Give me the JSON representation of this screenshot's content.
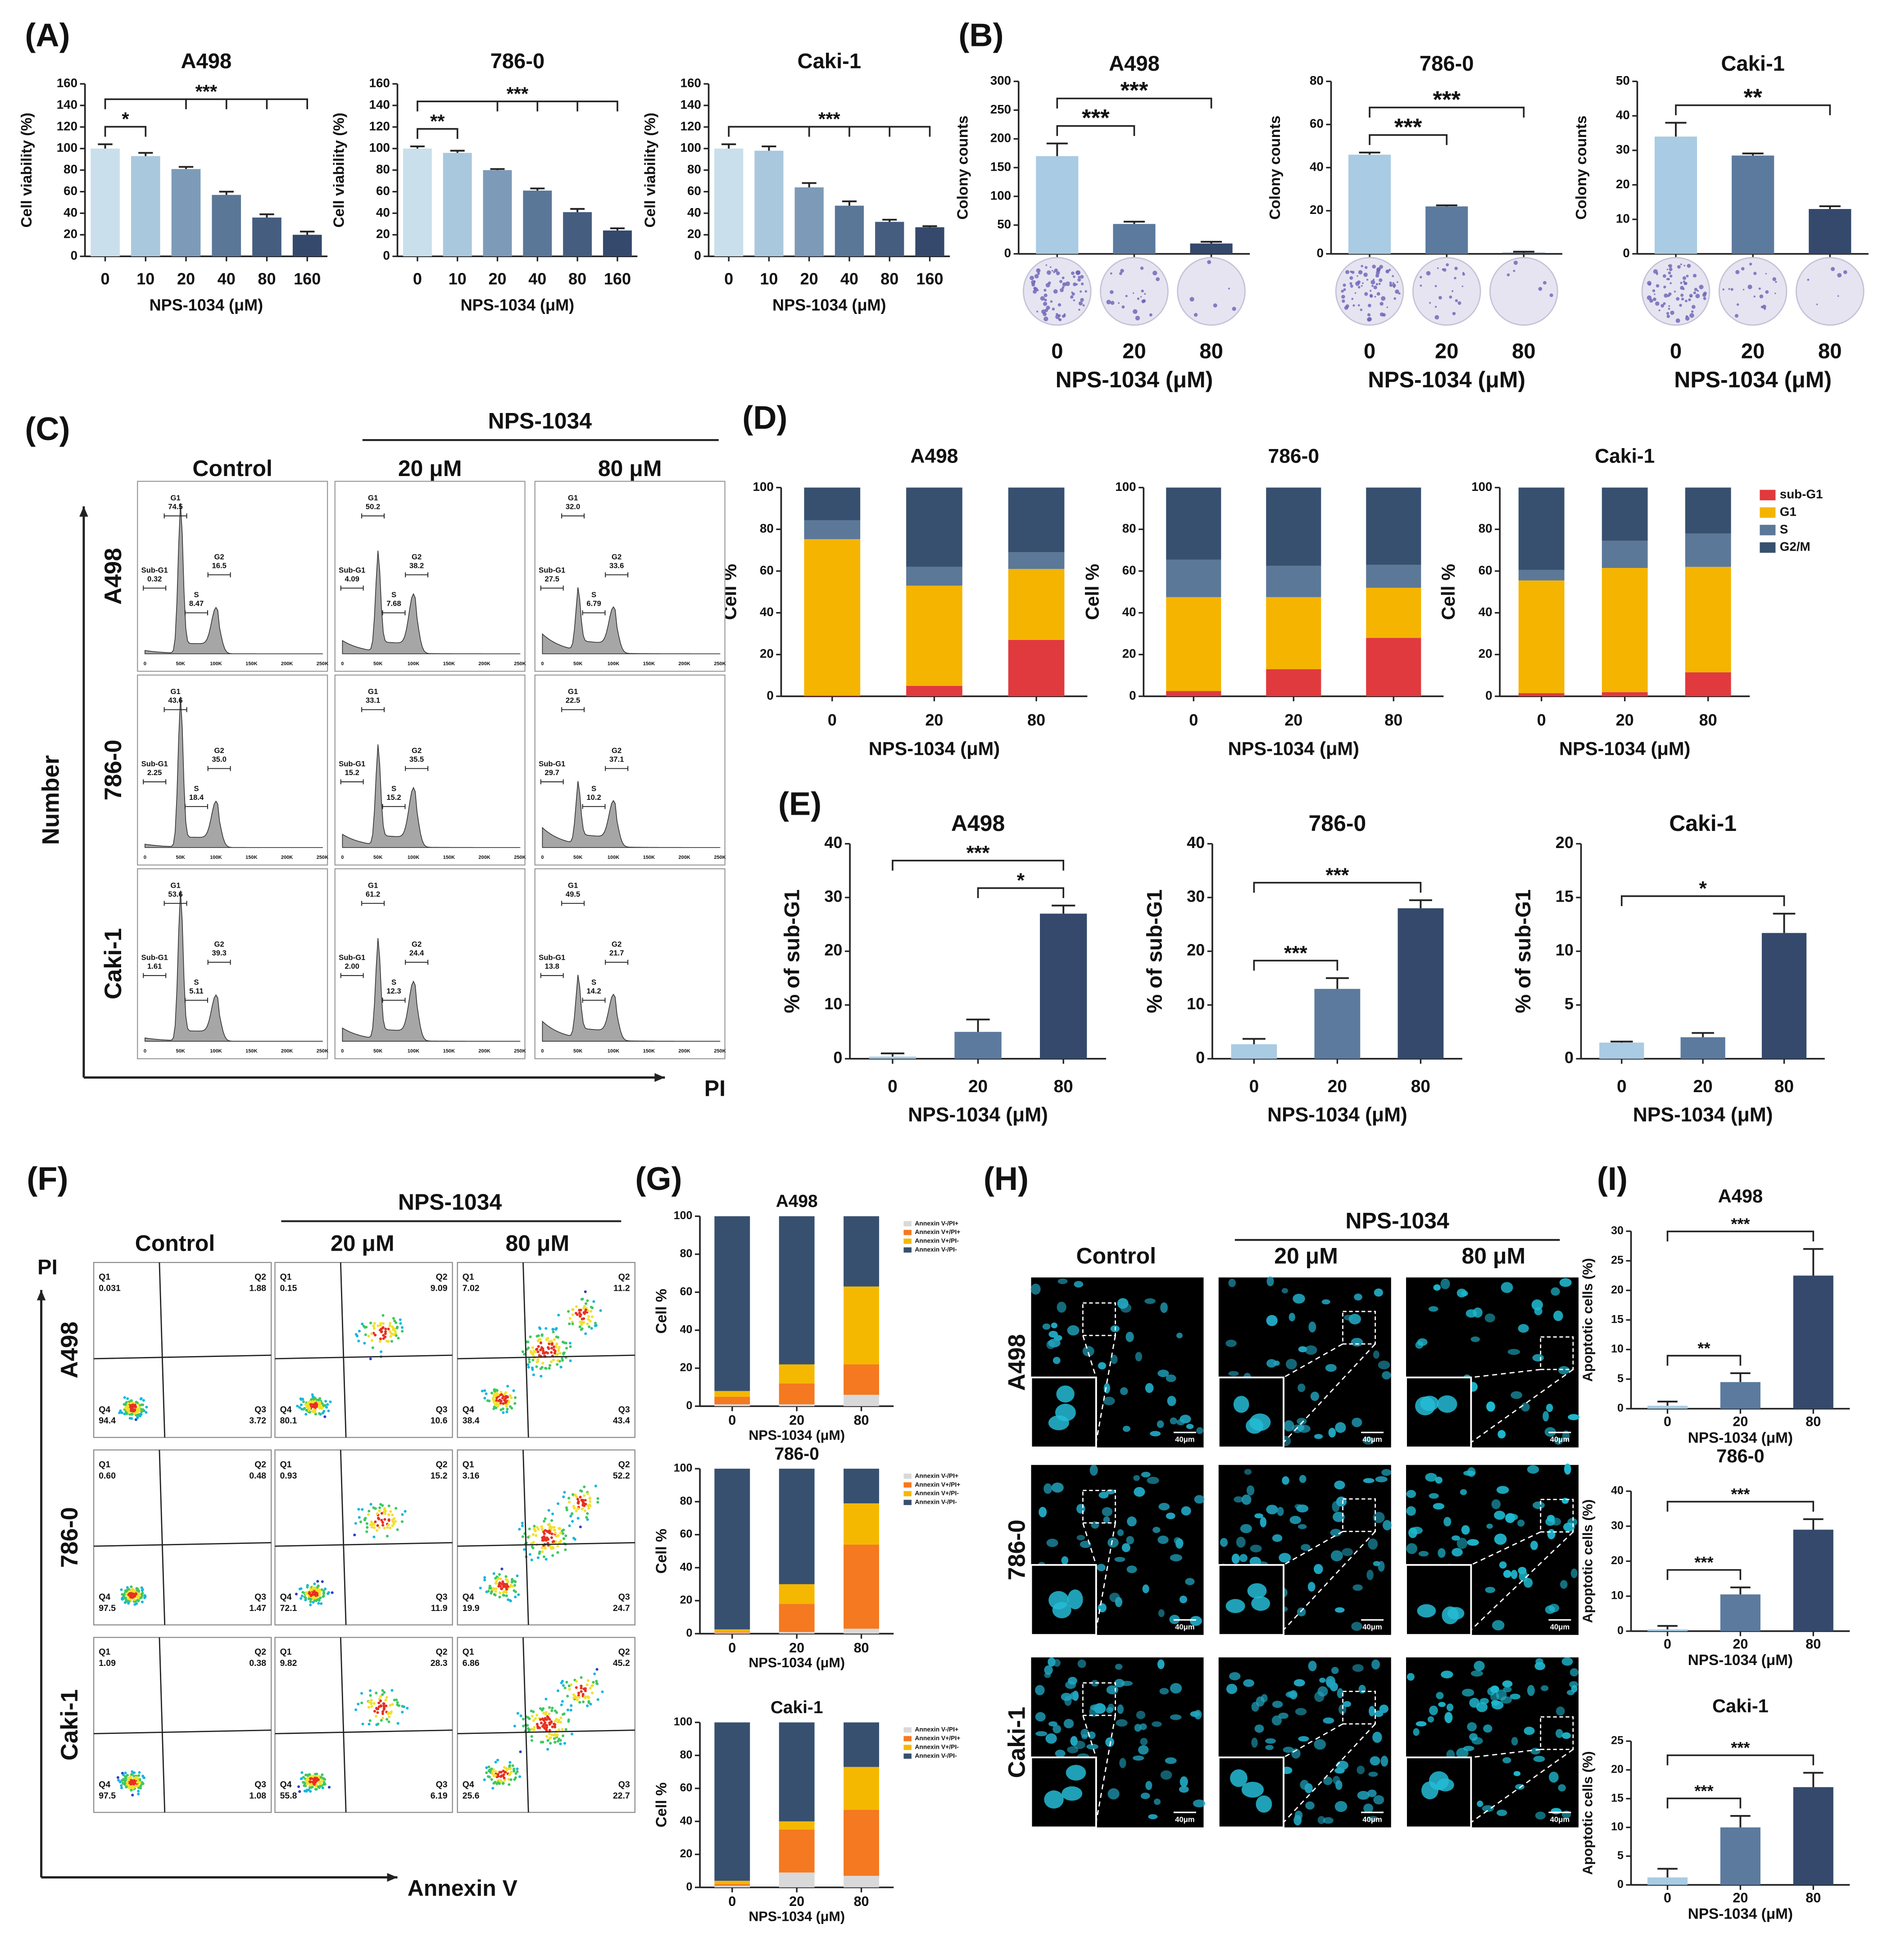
{
  "panel_labels": [
    "(A)",
    "(B)",
    "(C)",
    "(D)",
    "(E)",
    "(F)",
    "(G)",
    "(H)",
    "(I)"
  ],
  "chart_data": [
    {
      "type": "bar",
      "title": "A498",
      "xlabel": "NPS-1034 (μM)",
      "ylabel": "Cell viability (%)",
      "categories": [
        "0",
        "10",
        "20",
        "40",
        "80",
        "160"
      ],
      "values": [
        100,
        93,
        81,
        57,
        36,
        20
      ],
      "errors": [
        4,
        3,
        2,
        3,
        3,
        3
      ],
      "colors": [
        "#c9dfeb",
        "#a9c8de",
        "#7d9bb9",
        "#5b7797",
        "#455e80",
        "#34496b"
      ],
      "ylim": [
        0,
        160
      ],
      "yticks": [
        0,
        20,
        40,
        60,
        80,
        100,
        120,
        140,
        160
      ],
      "annotations": [
        {
          "text": "*",
          "from": "0",
          "to": [
            "10"
          ]
        },
        {
          "text": "***",
          "from": "0",
          "to": [
            "20",
            "40",
            "80",
            "160"
          ]
        }
      ]
    },
    {
      "type": "bar",
      "title": "786-0",
      "xlabel": "NPS-1034 (μM)",
      "ylabel": "Cell viability (%)",
      "categories": [
        "0",
        "10",
        "20",
        "40",
        "80",
        "160"
      ],
      "values": [
        100,
        96,
        80,
        61,
        41,
        24
      ],
      "errors": [
        2,
        2,
        1,
        2,
        3,
        2
      ],
      "colors": [
        "#c9dfeb",
        "#a9c8de",
        "#7d9bb9",
        "#5b7797",
        "#455e80",
        "#34496b"
      ],
      "ylim": [
        0,
        160
      ],
      "yticks": [
        0,
        20,
        40,
        60,
        80,
        100,
        120,
        140,
        160
      ],
      "annotations": [
        {
          "text": "**",
          "from": "0",
          "to": [
            "10"
          ]
        },
        {
          "text": "***",
          "from": "0",
          "to": [
            "20",
            "40",
            "80",
            "160"
          ]
        }
      ]
    },
    {
      "type": "bar",
      "title": "Caki-1",
      "xlabel": "NPS-1034 (μM)",
      "ylabel": "Cell viability (%)",
      "categories": [
        "0",
        "10",
        "20",
        "40",
        "80",
        "160"
      ],
      "values": [
        100,
        98,
        64,
        47,
        32,
        27
      ],
      "errors": [
        4,
        4,
        4,
        4,
        2,
        1
      ],
      "colors": [
        "#c9dfeb",
        "#a9c8de",
        "#7d9bb9",
        "#5b7797",
        "#455e80",
        "#34496b"
      ],
      "ylim": [
        0,
        160
      ],
      "yticks": [
        0,
        20,
        40,
        60,
        80,
        100,
        120,
        140,
        160
      ],
      "annotations": [
        {
          "text": "***",
          "from": "0",
          "to": [
            "20",
            "40",
            "80",
            "160"
          ]
        }
      ]
    },
    {
      "type": "bar",
      "title": "A498",
      "xlabel": "NPS-1034 (μM)",
      "ylabel": "Colony counts",
      "categories": [
        "0",
        "20",
        "80"
      ],
      "values": [
        170,
        52,
        18
      ],
      "errors": [
        22,
        4,
        3
      ],
      "colors": [
        "#a9cbe3",
        "#5b7a9e",
        "#34496b"
      ],
      "ylim": [
        0,
        300
      ],
      "yticks": [
        0,
        50,
        100,
        150,
        200,
        250,
        300
      ],
      "annotations": [
        {
          "text": "***",
          "from": "0",
          "to": [
            "20"
          ]
        },
        {
          "text": "***",
          "from": "0",
          "to": [
            "80"
          ]
        }
      ]
    },
    {
      "type": "bar",
      "title": "786-0",
      "xlabel": "NPS-1034 (μM)",
      "ylabel": "Colony counts",
      "categories": [
        "0",
        "20",
        "80"
      ],
      "values": [
        46,
        22,
        0.5
      ],
      "errors": [
        1,
        0.5,
        0.5
      ],
      "colors": [
        "#a9cbe3",
        "#5b7a9e",
        "#34496b"
      ],
      "ylim": [
        0,
        80
      ],
      "yticks": [
        0,
        20,
        40,
        60,
        80
      ],
      "annotations": [
        {
          "text": "***",
          "from": "0",
          "to": [
            "20"
          ]
        },
        {
          "text": "***",
          "from": "0",
          "to": [
            "80"
          ]
        }
      ]
    },
    {
      "type": "bar",
      "title": "Caki-1",
      "xlabel": "NPS-1034 (μM)",
      "ylabel": "Colony counts",
      "categories": [
        "0",
        "20",
        "80"
      ],
      "values": [
        34,
        28.5,
        13
      ],
      "errors": [
        4,
        0.6,
        0.8
      ],
      "colors": [
        "#a9cbe3",
        "#5b7a9e",
        "#34496b"
      ],
      "ylim": [
        0,
        50
      ],
      "yticks": [
        0,
        10,
        20,
        30,
        40,
        50
      ],
      "annotations": [
        {
          "text": "**",
          "from": "0",
          "to": [
            "80"
          ]
        }
      ]
    },
    {
      "type": "bar",
      "stacked": true,
      "title": "A498",
      "xlabel": "NPS-1034 (μM)",
      "ylabel": "Cell %",
      "categories": [
        "0",
        "20",
        "80"
      ],
      "series": [
        {
          "color": "#e03a3e",
          "values": [
            0.3,
            5,
            27
          ]
        },
        {
          "color": "#f5b400",
          "values": [
            75,
            48,
            34
          ]
        },
        {
          "color": "#5b7898",
          "values": [
            9,
            9,
            8
          ]
        },
        {
          "color": "#37506f",
          "values": [
            15.7,
            38,
            31
          ]
        }
      ],
      "ylim": [
        0,
        100
      ],
      "yticks": [
        0,
        20,
        40,
        60,
        80,
        100
      ]
    },
    {
      "type": "bar",
      "stacked": true,
      "title": "786-0",
      "xlabel": "NPS-1034 (μM)",
      "ylabel": "Cell %",
      "categories": [
        "0",
        "20",
        "80"
      ],
      "series": [
        {
          "color": "#e03a3e",
          "values": [
            2.5,
            13,
            28
          ]
        },
        {
          "color": "#f5b400",
          "values": [
            45,
            34.5,
            24
          ]
        },
        {
          "color": "#5b7898",
          "values": [
            18,
            15,
            11
          ]
        },
        {
          "color": "#37506f",
          "values": [
            34.5,
            37.5,
            37
          ]
        }
      ],
      "ylim": [
        0,
        100
      ],
      "yticks": [
        0,
        20,
        40,
        60,
        80,
        100
      ]
    },
    {
      "type": "bar",
      "stacked": true,
      "title": "Caki-1",
      "xlabel": "NPS-1034 (μM)",
      "ylabel": "Cell %",
      "categories": [
        "0",
        "20",
        "80"
      ],
      "series": [
        {
          "name": "sub-G1",
          "color": "#e03a3e",
          "values": [
            1.5,
            2,
            11.5
          ]
        },
        {
          "name": "G1",
          "color": "#f5b400",
          "values": [
            54,
            59.5,
            50.5
          ]
        },
        {
          "name": "S",
          "color": "#5b7898",
          "values": [
            5,
            13,
            16
          ]
        },
        {
          "name": "G2/M",
          "color": "#37506f",
          "values": [
            39.5,
            25.5,
            22
          ]
        }
      ],
      "ylim": [
        0,
        100
      ],
      "yticks": [
        0,
        20,
        40,
        60,
        80,
        100
      ],
      "legend": "right"
    },
    {
      "type": "bar",
      "title": "A498",
      "xlabel": "NPS-1034 (μM)",
      "ylabel": "% of sub-G1",
      "categories": [
        "0",
        "20",
        "80"
      ],
      "values": [
        0.4,
        5,
        27
      ],
      "errors": [
        0.6,
        2.3,
        1.5
      ],
      "colors": [
        "#a9cbe3",
        "#5b7a9e",
        "#34496b"
      ],
      "ylim": [
        0,
        40
      ],
      "yticks": [
        0,
        10,
        20,
        30,
        40
      ],
      "annotations": [
        {
          "text": "*",
          "from": "20",
          "to": [
            "80"
          ]
        },
        {
          "text": "***",
          "from": "0",
          "to": [
            "80"
          ]
        }
      ]
    },
    {
      "type": "bar",
      "title": "786-0",
      "xlabel": "NPS-1034 (μM)",
      "ylabel": "% of sub-G1",
      "categories": [
        "0",
        "20",
        "80"
      ],
      "values": [
        2.7,
        13,
        28
      ],
      "errors": [
        1,
        2,
        1.5
      ],
      "colors": [
        "#a9cbe3",
        "#5b7a9e",
        "#34496b"
      ],
      "ylim": [
        0,
        40
      ],
      "yticks": [
        0,
        10,
        20,
        30,
        40
      ],
      "annotations": [
        {
          "text": "***",
          "from": "0",
          "to": [
            "20"
          ]
        },
        {
          "text": "***",
          "from": "0",
          "to": [
            "80"
          ]
        }
      ]
    },
    {
      "type": "bar",
      "title": "Caki-1",
      "xlabel": "NPS-1034 (μM)",
      "ylabel": "% of sub-G1",
      "categories": [
        "0",
        "20",
        "80"
      ],
      "values": [
        1.5,
        2,
        11.7
      ],
      "errors": [
        0.1,
        0.4,
        1.8
      ],
      "colors": [
        "#a9cbe3",
        "#5b7a9e",
        "#34496b"
      ],
      "ylim": [
        0,
        20
      ],
      "yticks": [
        0,
        5,
        10,
        15,
        20
      ],
      "annotations": [
        {
          "text": "*",
          "from": "0",
          "to": [
            "80"
          ]
        }
      ]
    },
    {
      "type": "bar",
      "stacked": true,
      "title": "A498",
      "xlabel": "NPS-1034 (μM)",
      "ylabel": "Cell %",
      "categories": [
        "0",
        "20",
        "80"
      ],
      "series": [
        {
          "name": "Annexin V-/PI+",
          "color": "#d9d9d9",
          "values": [
            1,
            1,
            6
          ]
        },
        {
          "name": "Annexin V+/PI+",
          "color": "#f47920",
          "values": [
            4,
            11,
            16
          ]
        },
        {
          "name": "Annexin V+/PI-",
          "color": "#f5b800",
          "values": [
            3,
            10,
            41
          ]
        },
        {
          "name": "Annexin V-/PI-",
          "color": "#37506f",
          "values": [
            92,
            78,
            37
          ]
        }
      ],
      "ylim": [
        0,
        100
      ],
      "yticks": [
        0,
        20,
        40,
        60,
        80,
        100
      ],
      "legend": "right"
    },
    {
      "type": "bar",
      "stacked": true,
      "title": "786-0",
      "xlabel": "NPS-1034 (μM)",
      "ylabel": "Cell %",
      "categories": [
        "0",
        "20",
        "80"
      ],
      "series": [
        {
          "name": "Annexin V-/PI+",
          "color": "#d9d9d9",
          "values": [
            0.6,
            1,
            3
          ]
        },
        {
          "name": "Annexin V+/PI+",
          "color": "#f47920",
          "values": [
            0.5,
            17,
            51
          ]
        },
        {
          "name": "Annexin V+/PI-",
          "color": "#f5b800",
          "values": [
            1.5,
            12,
            25
          ]
        },
        {
          "name": "Annexin V-/PI-",
          "color": "#37506f",
          "values": [
            97.4,
            70,
            21
          ]
        }
      ],
      "ylim": [
        0,
        100
      ],
      "yticks": [
        0,
        20,
        40,
        60,
        80,
        100
      ],
      "legend": "right"
    },
    {
      "type": "bar",
      "stacked": true,
      "title": "Caki-1",
      "xlabel": "NPS-1034 (μM)",
      "ylabel": "Cell %",
      "categories": [
        "0",
        "20",
        "80"
      ],
      "series": [
        {
          "name": "Annexin V-/PI+",
          "color": "#d9d9d9",
          "values": [
            1,
            9,
            7
          ]
        },
        {
          "name": "Annexin V+/PI+",
          "color": "#f47920",
          "values": [
            1,
            26,
            40
          ]
        },
        {
          "name": "Annexin V+/PI-",
          "color": "#f5b800",
          "values": [
            2,
            5,
            26
          ]
        },
        {
          "name": "Annexin V-/PI-",
          "color": "#37506f",
          "values": [
            96,
            60,
            27
          ]
        }
      ],
      "ylim": [
        0,
        100
      ],
      "yticks": [
        0,
        20,
        40,
        60,
        80,
        100
      ],
      "legend": "right"
    },
    {
      "type": "bar",
      "title": "A498",
      "xlabel": "NPS-1034 (μM)",
      "ylabel": "Apoptotic cells (%)",
      "categories": [
        "0",
        "20",
        "80"
      ],
      "values": [
        0.5,
        4.5,
        22.5
      ],
      "errors": [
        0.7,
        1.5,
        4.5
      ],
      "colors": [
        "#a9cbe3",
        "#5b7a9e",
        "#34496b"
      ],
      "ylim": [
        0,
        30
      ],
      "yticks": [
        0,
        5,
        10,
        15,
        20,
        25,
        30
      ],
      "annotations": [
        {
          "text": "**",
          "from": "0",
          "to": [
            "20"
          ]
        },
        {
          "text": "***",
          "from": "0",
          "to": [
            "80"
          ]
        }
      ]
    },
    {
      "type": "bar",
      "title": "786-0",
      "xlabel": "NPS-1034 (μM)",
      "ylabel": "Apoptotic cells (%)",
      "categories": [
        "0",
        "20",
        "80"
      ],
      "values": [
        0.5,
        10.5,
        29
      ],
      "errors": [
        1,
        2,
        3
      ],
      "colors": [
        "#a9cbe3",
        "#5b7a9e",
        "#34496b"
      ],
      "ylim": [
        0,
        40
      ],
      "yticks": [
        0,
        10,
        20,
        30,
        40
      ],
      "annotations": [
        {
          "text": "***",
          "from": "0",
          "to": [
            "20"
          ]
        },
        {
          "text": "***",
          "from": "0",
          "to": [
            "80"
          ]
        }
      ]
    },
    {
      "type": "bar",
      "title": "Caki-1",
      "xlabel": "NPS-1034 (μM)",
      "ylabel": "Apoptotic cells (%)",
      "categories": [
        "0",
        "20",
        "80"
      ],
      "values": [
        1.3,
        10,
        17
      ],
      "errors": [
        1.5,
        2,
        2.5
      ],
      "colors": [
        "#a9cbe3",
        "#5b7a9e",
        "#34496b"
      ],
      "ylim": [
        0,
        25
      ],
      "yticks": [
        0,
        5,
        10,
        15,
        20,
        25
      ],
      "annotations": [
        {
          "text": "***",
          "from": "0",
          "to": [
            "20"
          ]
        },
        {
          "text": "***",
          "from": "0",
          "to": [
            "80"
          ]
        }
      ]
    }
  ],
  "cell_cycle_flow": {
    "header": "NPS-1034",
    "columns": [
      "Control",
      "20 μM",
      "80 μM"
    ],
    "rows": [
      "A498",
      "786-0",
      "Caki-1"
    ],
    "y_axis": "Number",
    "x_axis": "PI",
    "x_ticks": [
      "0",
      "50K",
      "100K",
      "150K",
      "200K",
      "250K"
    ],
    "gates": [
      "Sub-G1",
      "G1",
      "S",
      "G2"
    ],
    "values": [
      [
        [
          "0.32",
          "74.5",
          "8.47",
          "16.5"
        ],
        [
          "4.09",
          "50.2",
          "7.68",
          "38.2"
        ],
        [
          "27.5",
          "32.0",
          "6.79",
          "33.6"
        ]
      ],
      [
        [
          "2.25",
          "43.6",
          "18.4",
          "35.0"
        ],
        [
          "15.2",
          "33.1",
          "15.2",
          "35.5"
        ],
        [
          "29.7",
          "22.5",
          "10.2",
          "37.1"
        ]
      ],
      [
        [
          "1.61",
          "53.6",
          "5.11",
          "39.3"
        ],
        [
          "2.00",
          "61.2",
          "12.3",
          "24.4"
        ],
        [
          "13.8",
          "49.5",
          "14.2",
          "21.7"
        ]
      ]
    ]
  },
  "annexin_flow": {
    "header": "NPS-1034",
    "columns": [
      "Control",
      "20 μM",
      "80 μM"
    ],
    "rows": [
      "A498",
      "786-0",
      "Caki-1"
    ],
    "y_axis": "PI",
    "x_axis": "Annexin V",
    "quadrants": [
      "Q1",
      "Q2",
      "Q3",
      "Q4"
    ],
    "values": [
      [
        [
          "0.031",
          "1.88",
          "3.72",
          "94.4"
        ],
        [
          "0.15",
          "9.09",
          "10.6",
          "80.1"
        ],
        [
          "7.02",
          "11.2",
          "43.4",
          "38.4"
        ]
      ],
      [
        [
          "0.60",
          "0.48",
          "1.47",
          "97.5"
        ],
        [
          "0.93",
          "15.2",
          "11.9",
          "72.1"
        ],
        [
          "3.16",
          "52.2",
          "24.7",
          "19.9"
        ]
      ],
      [
        [
          "1.09",
          "0.38",
          "1.08",
          "97.5"
        ],
        [
          "9.82",
          "28.3",
          "6.19",
          "55.8"
        ],
        [
          "6.86",
          "45.2",
          "22.7",
          "25.6"
        ]
      ]
    ]
  },
  "microscopy": {
    "header": "NPS-1034",
    "columns": [
      "Control",
      "20 μM",
      "80 μM"
    ],
    "rows": [
      "A498",
      "786-0",
      "Caki-1"
    ],
    "scale_bar": "40μm"
  }
}
